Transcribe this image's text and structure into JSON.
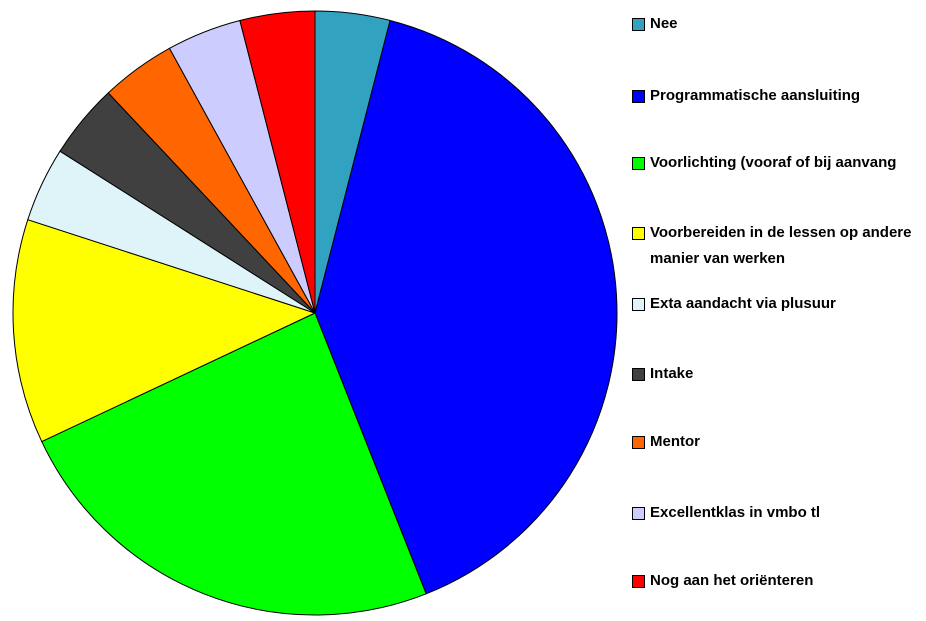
{
  "chart_data": {
    "type": "pie",
    "categories": [
      "Nee",
      "Programmatische aansluiting",
      "Voorlichting (vooraf of bij aanvang",
      "Voorbereiden in de lessen op andere manier van werken",
      "Exta aandacht via plusuur",
      "Intake",
      "Mentor",
      "Excellentklas in vmbo tl",
      "Nog aan het oriënteren"
    ],
    "values": [
      4,
      40,
      24,
      12,
      4,
      4,
      4,
      4,
      4
    ],
    "colors": [
      "#31a2c0",
      "#0000ff",
      "#00ff00",
      "#ffff00",
      "#dff4f8",
      "#404040",
      "#ff6600",
      "#ccccff",
      "#ff0000"
    ],
    "legend": "right"
  }
}
